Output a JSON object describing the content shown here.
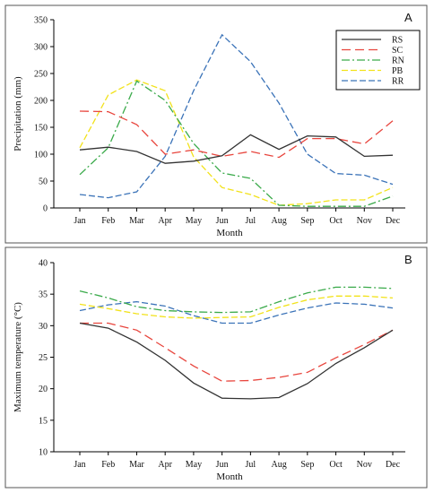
{
  "colors": {
    "RS": "#333333",
    "SC": "#e8463e",
    "RN": "#3aaa4a",
    "PB": "#f2e21a",
    "RR": "#3b73b8"
  },
  "chart_data": [
    {
      "type": "line",
      "panel_label": "A",
      "xlabel": "Month",
      "ylabel": "Precipitation (mm)",
      "ylim": [
        0,
        350
      ],
      "yticks": [
        0,
        50,
        100,
        150,
        200,
        250,
        300,
        350
      ],
      "categories": [
        "Jan",
        "Feb",
        "Mar",
        "Apr",
        "May",
        "Jun",
        "Jul",
        "Aug",
        "Sep",
        "Oct",
        "Nov",
        "Dec"
      ],
      "legend_position": "top-right",
      "grid": false,
      "series": [
        {
          "name": "RS",
          "values": [
            108,
            113,
            105,
            83,
            87,
            97,
            136,
            109,
            134,
            132,
            96,
            98
          ]
        },
        {
          "name": "SC",
          "values": [
            180,
            179,
            155,
            100,
            108,
            96,
            105,
            94,
            129,
            129,
            119,
            162
          ]
        },
        {
          "name": "RN",
          "values": [
            62,
            112,
            236,
            200,
            120,
            65,
            55,
            5,
            3,
            3,
            3,
            22
          ]
        },
        {
          "name": "PB",
          "values": [
            112,
            210,
            238,
            218,
            95,
            38,
            25,
            5,
            8,
            15,
            15,
            38
          ]
        },
        {
          "name": "RR",
          "values": [
            25,
            19,
            30,
            96,
            218,
            322,
            272,
            195,
            100,
            64,
            61,
            44
          ]
        }
      ]
    },
    {
      "type": "line",
      "panel_label": "B",
      "xlabel": "Month",
      "ylabel": "Maximum temperature (°C)",
      "ylim": [
        10,
        40
      ],
      "yticks": [
        10,
        15,
        20,
        25,
        30,
        35,
        40
      ],
      "categories": [
        "Jan",
        "Feb",
        "Mar",
        "Apr",
        "May",
        "Jun",
        "Jul",
        "Aug",
        "Sep",
        "Oct",
        "Nov",
        "Dec"
      ],
      "grid": false,
      "series": [
        {
          "name": "RS",
          "values": [
            30.4,
            29.6,
            27.4,
            24.5,
            20.9,
            18.5,
            18.4,
            18.6,
            20.8,
            24.0,
            26.5,
            29.3
          ]
        },
        {
          "name": "SC",
          "values": [
            30.4,
            30.4,
            29.3,
            26.5,
            23.6,
            21.2,
            21.3,
            21.8,
            22.6,
            24.9,
            27.0,
            29.3
          ]
        },
        {
          "name": "RN",
          "values": [
            35.5,
            34.4,
            33.0,
            32.4,
            32.2,
            32.1,
            32.2,
            33.8,
            35.2,
            36.1,
            36.1,
            35.9
          ]
        },
        {
          "name": "PB",
          "values": [
            33.4,
            32.7,
            31.9,
            31.4,
            31.2,
            31.3,
            31.4,
            32.9,
            34.1,
            34.7,
            34.7,
            34.4
          ]
        },
        {
          "name": "RR",
          "values": [
            32.4,
            33.3,
            33.8,
            33.1,
            31.6,
            30.4,
            30.4,
            31.7,
            32.8,
            33.6,
            33.4,
            32.8
          ]
        }
      ]
    }
  ]
}
